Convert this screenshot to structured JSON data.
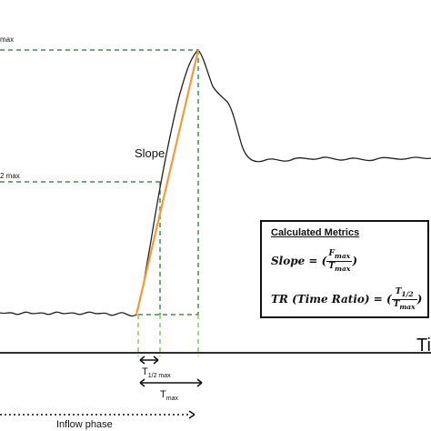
{
  "labels": {
    "fmax_partial": "max",
    "half_fmax_partial": "2 max",
    "slope": "Slope",
    "time_axis_partial": "Ti",
    "t_half_max": "T",
    "t_half_max_sub": "1/2 max",
    "t_max": "T",
    "t_max_sub": "max",
    "inflow_phase": "Inflow phase"
  },
  "metrics": {
    "title": "Calculated Metrics",
    "slope_lhs": "Slope = (",
    "slope_num": "F",
    "slope_num_sub": "max",
    "slope_den": "T",
    "slope_den_sub": "max",
    "slope_rhs": ")",
    "tr_lhs": "TR (Time Ratio) = (",
    "tr_num": "T",
    "tr_num_sub": "1/2",
    "tr_den": "T",
    "tr_den_sub": "max",
    "tr_rhs": ")"
  },
  "colors": {
    "curve": "#222222",
    "slope_line": "#f29b38",
    "dashed_dark_green": "#3f8f4a",
    "dashed_light_green": "#8cc95a",
    "axis": "#111111"
  }
}
